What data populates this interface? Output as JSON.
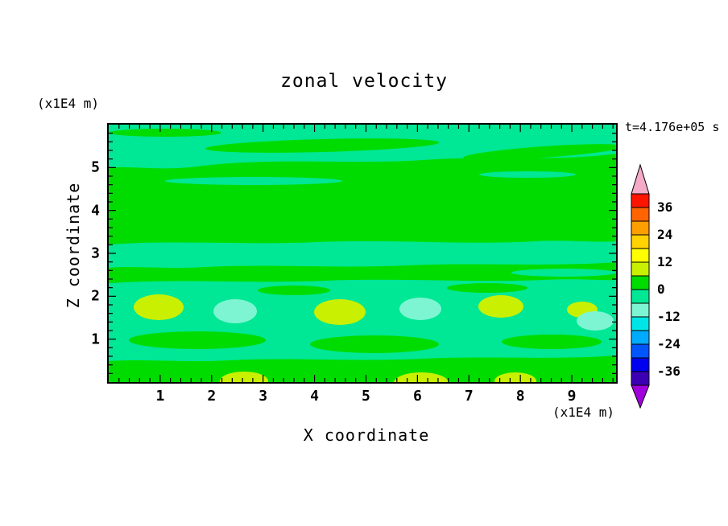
{
  "chart_data": {
    "type": "heatmap",
    "title": "zonal velocity",
    "xlabel": "X coordinate",
    "ylabel": "Z coordinate",
    "x_units_label": "(x1E4 m)",
    "y_units_label": "(x1E4 m)",
    "time_annotation": "t=4.176e+05 s",
    "xlim": [
      0,
      9.86
    ],
    "ylim": [
      0,
      6
    ],
    "x_ticks": [
      1,
      2,
      3,
      4,
      5,
      6,
      7,
      8,
      9
    ],
    "y_ticks": [
      1,
      2,
      3,
      4,
      5
    ],
    "grid": false,
    "contour_interval": 6,
    "palette": {
      "green": "#00DC00",
      "spring": "#00E795",
      "yellowgreen": "#C9F000",
      "cyan": "#7DF5D2"
    },
    "colorbar": {
      "position": "right",
      "over_color": "#F5AAC8",
      "under_color": "#A000DC",
      "tick_labels": [
        "36",
        "24",
        "12",
        "0",
        "-12",
        "-24",
        "-36"
      ],
      "segments": [
        {
          "range": [
            36,
            42
          ],
          "color": "#FF1400"
        },
        {
          "range": [
            30,
            36
          ],
          "color": "#FF6400"
        },
        {
          "range": [
            24,
            30
          ],
          "color": "#FF9E00"
        },
        {
          "range": [
            18,
            24
          ],
          "color": "#FFD200"
        },
        {
          "range": [
            12,
            18
          ],
          "color": "#FFFF00"
        },
        {
          "range": [
            6,
            12
          ],
          "color": "#C9F000"
        },
        {
          "range": [
            0,
            6
          ],
          "color": "#00DC00"
        },
        {
          "range": [
            -6,
            0
          ],
          "color": "#00E795"
        },
        {
          "range": [
            -12,
            -6
          ],
          "color": "#7DF5D2"
        },
        {
          "range": [
            -18,
            -12
          ],
          "color": "#00E6E6"
        },
        {
          "range": [
            -24,
            -18
          ],
          "color": "#00AAFF"
        },
        {
          "range": [
            -30,
            -24
          ],
          "color": "#0055FF"
        },
        {
          "range": [
            -36,
            -30
          ],
          "color": "#0000F0"
        },
        {
          "range": [
            -42,
            -36
          ],
          "color": "#3C00B4"
        }
      ]
    },
    "field_regions": [
      {
        "level_range": [
          0,
          6
        ],
        "color_key": "green",
        "description": "dominant background over most of the domain"
      },
      {
        "level_range": [
          -6,
          0
        ],
        "color_key": "spring",
        "description": "wavy horizontal bands near z=5.2-6, z=2.7-3.2 and a broad mottled layer z=0.6-2.3"
      },
      {
        "level_range": [
          6,
          12
        ],
        "color_key": "yellowgreen",
        "description": "closed blobs near z=1.7 at x=1.0, 4.5, 7.6, 9.1 and along the bottom edge near x=2.6, 6.0, 7.9"
      },
      {
        "level_range": [
          -12,
          -6
        ],
        "color_key": "cyan",
        "description": "closed blobs near z=1.7 at x=2.4, 6.0, 9.4"
      }
    ]
  }
}
